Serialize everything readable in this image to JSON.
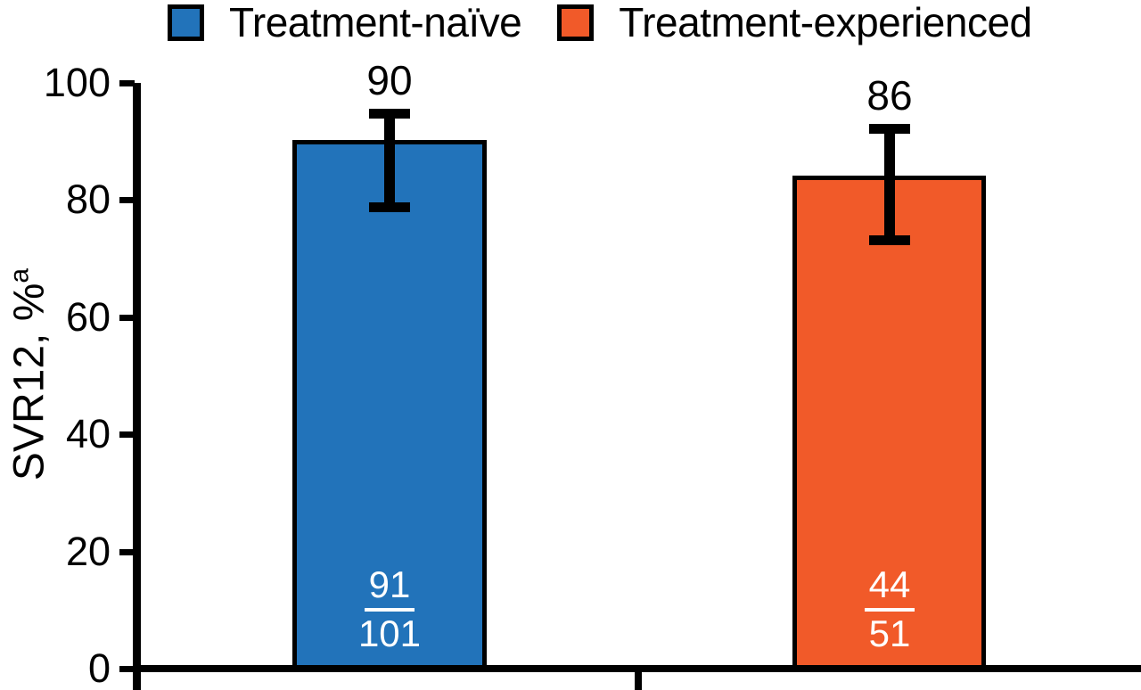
{
  "legend": {
    "items": [
      {
        "label": "Treatment-naïve",
        "color": "#2273BA"
      },
      {
        "label": "Treatment-experienced",
        "color": "#F15A29"
      }
    ]
  },
  "y_axis": {
    "title": "SVR12, %",
    "footnote_marker": "a"
  },
  "chart_data": {
    "type": "bar",
    "title": "",
    "xlabel": "",
    "ylabel": "SVR12, %a",
    "ylim": [
      0,
      100
    ],
    "yticks": [
      0,
      20,
      40,
      60,
      80,
      100
    ],
    "grid": false,
    "legend_position": "top",
    "categories": [
      "Treatment-naïve",
      "Treatment-experienced"
    ],
    "bars": [
      {
        "category": "Treatment-naïve",
        "value": 90,
        "value_label": "90",
        "drawn_value": 90.3,
        "error_high": 94.8,
        "error_low": 78.9,
        "fraction_numerator": "91",
        "fraction_denominator": "101",
        "color": "#2273BA"
      },
      {
        "category": "Treatment-experienced",
        "value": 86,
        "value_label": "86",
        "drawn_value": 84.2,
        "error_high": 92.2,
        "error_low": 73.2,
        "fraction_numerator": "44",
        "fraction_denominator": "51",
        "color": "#F15A29"
      }
    ]
  }
}
